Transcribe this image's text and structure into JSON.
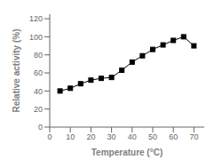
{
  "chart_data": {
    "type": "line",
    "x": [
      5,
      10,
      15,
      20,
      25,
      30,
      35,
      40,
      45,
      50,
      55,
      60,
      65,
      70
    ],
    "values": [
      40,
      43,
      48,
      52,
      54,
      55,
      63,
      72,
      79,
      86,
      91,
      96,
      100,
      90
    ],
    "xlabel": "Temperature (°C)",
    "ylabel": "Relative activity (%)",
    "xlim": [
      0,
      75
    ],
    "ylim": [
      0,
      125
    ],
    "xticks": [
      0,
      10,
      20,
      30,
      40,
      50,
      60,
      70
    ],
    "yticks": [
      0,
      20,
      40,
      60,
      80,
      100,
      120
    ],
    "color": "#000000",
    "marker": "square",
    "grid": false
  }
}
